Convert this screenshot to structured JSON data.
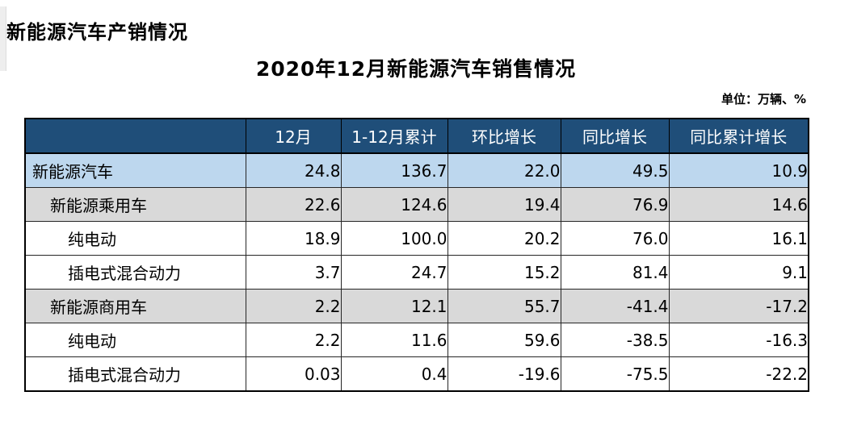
{
  "page": {
    "title": "新能源汽车产销情况",
    "subtitle": "2020年12月新能源汽车销售情况",
    "unit_note": "单位：万辆、%"
  },
  "table": {
    "columns": [
      "",
      "12月",
      "1-12月累计",
      "环比增长",
      "同比增长",
      "同比累计增长"
    ],
    "rows": [
      {
        "label": "新能源汽车",
        "indent": 0,
        "style": "blue",
        "values": [
          "24.8",
          "136.7",
          "22.0",
          "49.5",
          "10.9"
        ]
      },
      {
        "label": "新能源乘用车",
        "indent": 1,
        "style": "gray",
        "values": [
          "22.6",
          "124.6",
          "19.4",
          "76.9",
          "14.6"
        ]
      },
      {
        "label": "纯电动",
        "indent": 2,
        "style": "white",
        "values": [
          "18.9",
          "100.0",
          "20.2",
          "76.0",
          "16.1"
        ]
      },
      {
        "label": "插电式混合动力",
        "indent": 2,
        "style": "white",
        "values": [
          "3.7",
          "24.7",
          "15.2",
          "81.4",
          "9.1"
        ]
      },
      {
        "label": "新能源商用车",
        "indent": 1,
        "style": "gray",
        "values": [
          "2.2",
          "12.1",
          "55.7",
          "-41.4",
          "-17.2"
        ]
      },
      {
        "label": "纯电动",
        "indent": 2,
        "style": "white",
        "values": [
          "2.2",
          "11.6",
          "59.6",
          "-38.5",
          "-16.3"
        ]
      },
      {
        "label": "插电式混合动力",
        "indent": 2,
        "style": "white",
        "values": [
          "0.03",
          "0.4",
          "-19.6",
          "-75.5",
          "-22.2"
        ]
      }
    ]
  },
  "colors": {
    "header_bg": "#1F4E79",
    "header_text": "#FFFFFF",
    "row_blue": "#BDD7EE",
    "row_gray": "#D9D9D9",
    "row_white": "#FFFFFF",
    "border": "#000000"
  }
}
